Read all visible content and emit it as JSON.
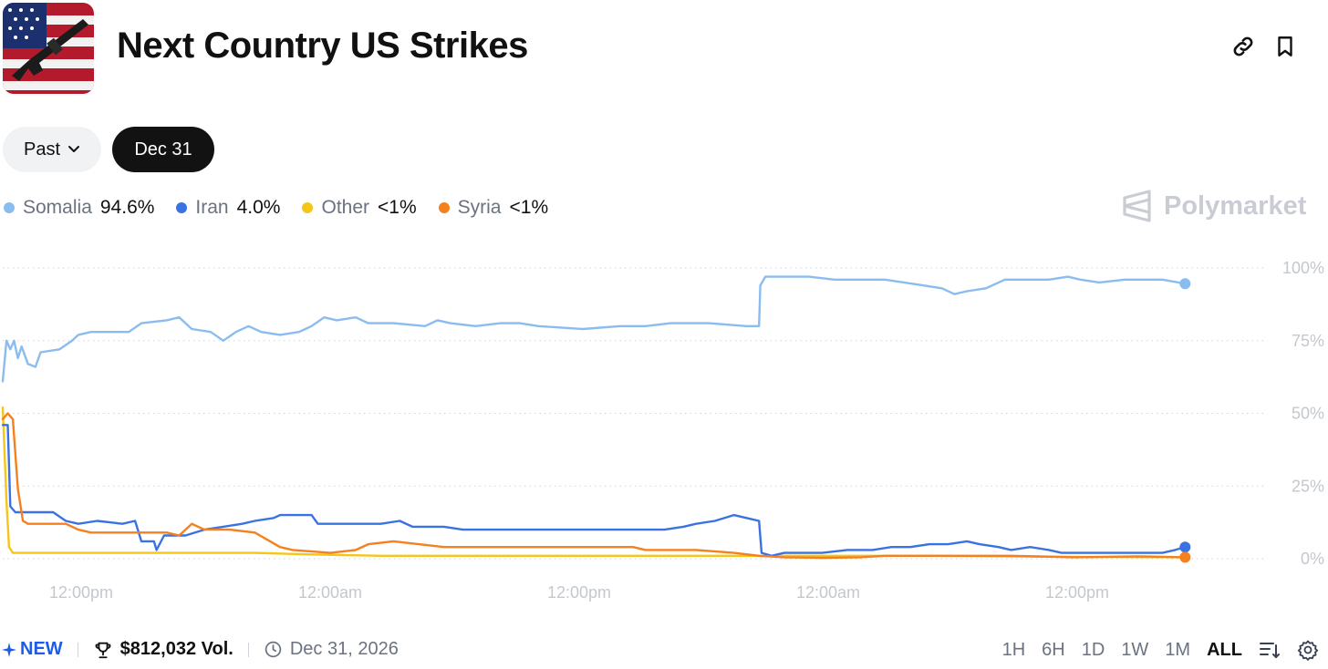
{
  "header": {
    "title": "Next Country US Strikes",
    "thumbnail_icon": "us-flag-rifle-image",
    "link_icon": "link-icon",
    "bookmark_icon": "bookmark-icon"
  },
  "filters": {
    "past_label": "Past",
    "date_label": "Dec 31"
  },
  "legend": [
    {
      "name": "Somalia",
      "value": "94.6%",
      "color": "#8bbcf0"
    },
    {
      "name": "Iran",
      "value": "4.0%",
      "color": "#3b72e3"
    },
    {
      "name": "Other",
      "value": "<1%",
      "color": "#f5c518"
    },
    {
      "name": "Syria",
      "value": "<1%",
      "color": "#f5801f"
    }
  ],
  "brand": {
    "name": "Polymarket",
    "icon": "polymarket-logo-icon"
  },
  "chart_data": {
    "type": "line",
    "x_tick_labels": [
      "12:00pm",
      "12:00am",
      "12:00pm",
      "12:00am",
      "12:00pm"
    ],
    "y_ticks": [
      0,
      25,
      50,
      75,
      100
    ],
    "y_tick_labels": [
      "0%",
      "25%",
      "50%",
      "75%",
      "100%"
    ],
    "ylim": [
      0,
      100
    ],
    "x_range": [
      0,
      100
    ],
    "grid": true,
    "series": [
      {
        "name": "Somalia",
        "color": "#8bbcf0",
        "points": [
          [
            0,
            61
          ],
          [
            0.3,
            75
          ],
          [
            0.6,
            72
          ],
          [
            0.9,
            75
          ],
          [
            1.2,
            69
          ],
          [
            1.5,
            73
          ],
          [
            2,
            67
          ],
          [
            2.6,
            66
          ],
          [
            3,
            71
          ],
          [
            4.5,
            72
          ],
          [
            5.5,
            75
          ],
          [
            6,
            77
          ],
          [
            7,
            78
          ],
          [
            9,
            78
          ],
          [
            10,
            78
          ],
          [
            11,
            81
          ],
          [
            13,
            82
          ],
          [
            14,
            83
          ],
          [
            15,
            79
          ],
          [
            16.5,
            78
          ],
          [
            17.5,
            75
          ],
          [
            18.5,
            78
          ],
          [
            19.5,
            80
          ],
          [
            20.5,
            78
          ],
          [
            22,
            77
          ],
          [
            23.5,
            78
          ],
          [
            24.5,
            80
          ],
          [
            25.5,
            83
          ],
          [
            26.5,
            82
          ],
          [
            28,
            83
          ],
          [
            29,
            81
          ],
          [
            31,
            81
          ],
          [
            33.5,
            80
          ],
          [
            34.5,
            82
          ],
          [
            35.5,
            81
          ],
          [
            37.5,
            80
          ],
          [
            39.5,
            81
          ],
          [
            41,
            81
          ],
          [
            42.5,
            80
          ],
          [
            46,
            79
          ],
          [
            49,
            80
          ],
          [
            51,
            80
          ],
          [
            53,
            81
          ],
          [
            56,
            81
          ],
          [
            59,
            80
          ],
          [
            60,
            80
          ],
          [
            60.1,
            94
          ],
          [
            60.5,
            97
          ],
          [
            62,
            97
          ],
          [
            64,
            97
          ],
          [
            66,
            96
          ],
          [
            68,
            96
          ],
          [
            70,
            96
          ],
          [
            71.5,
            95
          ],
          [
            73,
            94
          ],
          [
            74.5,
            93
          ],
          [
            75.5,
            91
          ],
          [
            76.5,
            92
          ],
          [
            78,
            93
          ],
          [
            79.5,
            96
          ],
          [
            81.5,
            96
          ],
          [
            83,
            96
          ],
          [
            84.5,
            97
          ],
          [
            85.5,
            96
          ],
          [
            87,
            95
          ],
          [
            89,
            96
          ],
          [
            91,
            96
          ],
          [
            92,
            96
          ],
          [
            93.8,
            94.6
          ]
        ]
      },
      {
        "name": "Iran",
        "color": "#3b72e3",
        "points": [
          [
            0,
            46
          ],
          [
            0.4,
            46
          ],
          [
            0.6,
            18
          ],
          [
            1,
            16
          ],
          [
            4,
            16
          ],
          [
            5,
            13
          ],
          [
            6,
            12
          ],
          [
            7.5,
            13
          ],
          [
            9.5,
            12
          ],
          [
            10.5,
            13
          ],
          [
            11,
            6
          ],
          [
            12,
            6
          ],
          [
            12.2,
            3
          ],
          [
            12.8,
            8
          ],
          [
            14.5,
            8
          ],
          [
            16,
            10
          ],
          [
            17.5,
            11
          ],
          [
            19,
            12
          ],
          [
            20,
            13
          ],
          [
            21.5,
            14
          ],
          [
            22,
            15
          ],
          [
            24.5,
            15
          ],
          [
            25,
            12
          ],
          [
            26.5,
            12
          ],
          [
            28,
            12
          ],
          [
            30,
            12
          ],
          [
            31.5,
            13
          ],
          [
            32.5,
            11
          ],
          [
            35,
            11
          ],
          [
            36.5,
            10
          ],
          [
            40,
            10
          ],
          [
            45,
            10
          ],
          [
            51,
            10
          ],
          [
            52.5,
            10
          ],
          [
            54,
            11
          ],
          [
            55,
            12
          ],
          [
            56.5,
            13
          ],
          [
            58,
            15
          ],
          [
            59,
            14
          ],
          [
            60,
            13
          ],
          [
            60.2,
            2
          ],
          [
            61,
            1
          ],
          [
            62,
            2
          ],
          [
            65,
            2
          ],
          [
            67,
            3
          ],
          [
            69,
            3
          ],
          [
            70.5,
            4
          ],
          [
            72,
            4
          ],
          [
            73.5,
            5
          ],
          [
            75,
            5
          ],
          [
            76.5,
            6
          ],
          [
            77.5,
            5
          ],
          [
            79,
            4
          ],
          [
            80,
            3
          ],
          [
            81.5,
            4
          ],
          [
            83,
            3
          ],
          [
            84,
            2
          ],
          [
            86,
            2
          ],
          [
            88,
            2
          ],
          [
            90,
            2
          ],
          [
            92,
            2
          ],
          [
            93,
            3
          ],
          [
            93.8,
            4
          ]
        ]
      },
      {
        "name": "Other",
        "color": "#f5c518",
        "points": [
          [
            0,
            52
          ],
          [
            0.3,
            20
          ],
          [
            0.5,
            4
          ],
          [
            0.8,
            2
          ],
          [
            3,
            2
          ],
          [
            8,
            2
          ],
          [
            15,
            2
          ],
          [
            20,
            2
          ],
          [
            24,
            1.5
          ],
          [
            30,
            1
          ],
          [
            36,
            1
          ],
          [
            42,
            1
          ],
          [
            48,
            1
          ],
          [
            55,
            1
          ],
          [
            60,
            1
          ],
          [
            63,
            1
          ],
          [
            68,
            1
          ],
          [
            74,
            1
          ],
          [
            80,
            0.8
          ],
          [
            86,
            0.6
          ],
          [
            93.8,
            0.5
          ]
        ]
      },
      {
        "name": "Syria",
        "color": "#f5801f",
        "points": [
          [
            0,
            48
          ],
          [
            0.4,
            50
          ],
          [
            0.8,
            48
          ],
          [
            1.2,
            24
          ],
          [
            1.6,
            13
          ],
          [
            2,
            12
          ],
          [
            3,
            12
          ],
          [
            5,
            12
          ],
          [
            6,
            10
          ],
          [
            7,
            9
          ],
          [
            10,
            9
          ],
          [
            13,
            9
          ],
          [
            14,
            8
          ],
          [
            15,
            12
          ],
          [
            16,
            10
          ],
          [
            18,
            10
          ],
          [
            20,
            9
          ],
          [
            22,
            4
          ],
          [
            23,
            3
          ],
          [
            26,
            2
          ],
          [
            28,
            3
          ],
          [
            29,
            5
          ],
          [
            31,
            6
          ],
          [
            33,
            5
          ],
          [
            35,
            4
          ],
          [
            40,
            4
          ],
          [
            45,
            4
          ],
          [
            50,
            4
          ],
          [
            51,
            3
          ],
          [
            55,
            3
          ],
          [
            58,
            2
          ],
          [
            60,
            1
          ],
          [
            62,
            0.5
          ],
          [
            65,
            0.3
          ],
          [
            68,
            0.5
          ],
          [
            70,
            1
          ],
          [
            75,
            1
          ],
          [
            80,
            1
          ],
          [
            85,
            0.5
          ],
          [
            90,
            0.8
          ],
          [
            93.8,
            0.5
          ]
        ]
      }
    ]
  },
  "footer": {
    "new_label": "NEW",
    "volume_label": "$812,032 Vol.",
    "date_label": "Dec 31, 2026",
    "ranges": [
      "1H",
      "6H",
      "1D",
      "1W",
      "1M",
      "ALL"
    ],
    "active_range": "ALL",
    "sort_icon": "sort-icon",
    "settings_icon": "gear-icon"
  }
}
